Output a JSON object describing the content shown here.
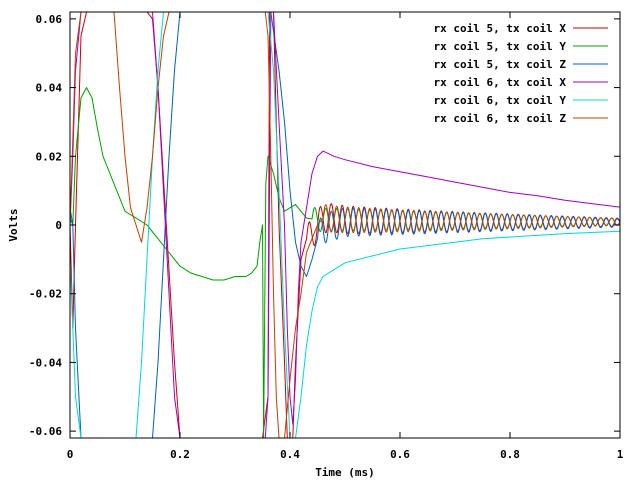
{
  "chart_data": {
    "type": "line",
    "title": "",
    "xlabel": "Time (ms)",
    "ylabel": "Volts",
    "xlim": [
      0,
      1
    ],
    "ylim": [
      -0.062,
      0.062
    ],
    "x_ticks": [
      0,
      0.2,
      0.4,
      0.6,
      0.8,
      1
    ],
    "x_tick_labels": [
      "0",
      "0.2",
      "0.4",
      "0.6",
      "0.8",
      "1"
    ],
    "y_ticks": [
      -0.06,
      -0.04,
      -0.02,
      0,
      0.02,
      0.04,
      0.06
    ],
    "y_tick_labels": [
      "-0.06",
      "-0.04",
      "-0.02",
      "0",
      "0.02",
      "0.04",
      "0.06"
    ],
    "grid": false,
    "legend_position": "top-right",
    "series": [
      {
        "name": "rx coil 5, tx coil X",
        "color": "#cc0000",
        "points": [
          [
            0,
            0.0
          ],
          [
            0.005,
            -0.03
          ],
          [
            0.01,
            0.0
          ],
          [
            0.02,
            0.055
          ],
          [
            0.03,
            0.062
          ],
          [
            0.06,
            0.062
          ],
          [
            0.1,
            0.062
          ],
          [
            0.14,
            0.062
          ],
          [
            0.15,
            0.06
          ],
          [
            0.16,
            0.04
          ],
          [
            0.175,
            0.0
          ],
          [
            0.19,
            -0.04
          ],
          [
            0.2,
            -0.062
          ],
          [
            0.22,
            -0.062
          ],
          [
            0.3,
            -0.062
          ],
          [
            0.35,
            -0.062
          ],
          [
            0.36,
            -0.05
          ],
          [
            0.363,
            0.062
          ],
          [
            0.37,
            0.062
          ],
          [
            0.375,
            0.03
          ],
          [
            0.38,
            0.0
          ],
          [
            0.39,
            -0.04
          ],
          [
            0.395,
            -0.062
          ],
          [
            0.405,
            -0.062
          ],
          [
            0.41,
            -0.04
          ],
          [
            0.42,
            -0.01
          ],
          [
            0.43,
            -0.004
          ],
          [
            0.44,
            -0.003
          ],
          [
            0.45,
            0.0
          ],
          [
            0.46,
            0.002
          ],
          [
            0.48,
            0.002
          ],
          [
            0.5,
            0.0015
          ],
          [
            0.6,
            0.0012
          ],
          [
            0.7,
            0.001
          ],
          [
            0.8,
            0.0009
          ],
          [
            1.0,
            0.0008
          ]
        ],
        "oscillation": {
          "start": 0.43,
          "end": 1.0,
          "period": 0.02,
          "amplitude_start": 0.0045,
          "amplitude_end": 0.0012
        }
      },
      {
        "name": "rx coil 5, tx coil Y",
        "color": "#00a000",
        "points": [
          [
            0,
            0.002
          ],
          [
            0.005,
            0.0
          ],
          [
            0.01,
            0.02
          ],
          [
            0.02,
            0.037
          ],
          [
            0.03,
            0.04
          ],
          [
            0.04,
            0.037
          ],
          [
            0.05,
            0.028
          ],
          [
            0.06,
            0.02
          ],
          [
            0.07,
            0.016
          ],
          [
            0.08,
            0.012
          ],
          [
            0.09,
            0.008
          ],
          [
            0.1,
            0.004
          ],
          [
            0.12,
            0.002
          ],
          [
            0.14,
            0.0
          ],
          [
            0.16,
            -0.004
          ],
          [
            0.18,
            -0.008
          ],
          [
            0.2,
            -0.012
          ],
          [
            0.22,
            -0.014
          ],
          [
            0.24,
            -0.015
          ],
          [
            0.26,
            -0.016
          ],
          [
            0.28,
            -0.016
          ],
          [
            0.3,
            -0.015
          ],
          [
            0.32,
            -0.015
          ],
          [
            0.33,
            -0.014
          ],
          [
            0.34,
            -0.012
          ],
          [
            0.345,
            -0.005
          ],
          [
            0.35,
            0.0
          ],
          [
            0.352,
            -0.062
          ],
          [
            0.356,
            0.012
          ],
          [
            0.36,
            0.02
          ],
          [
            0.37,
            0.015
          ],
          [
            0.38,
            0.008
          ],
          [
            0.39,
            0.004
          ],
          [
            0.4,
            0.005
          ],
          [
            0.41,
            0.006
          ],
          [
            0.42,
            0.004
          ],
          [
            0.43,
            0.002
          ],
          [
            0.45,
            0.0015
          ],
          [
            0.5,
            0.0015
          ],
          [
            0.6,
            0.0013
          ],
          [
            0.8,
            0.0011
          ],
          [
            1.0,
            0.001
          ]
        ],
        "oscillation": {
          "start": 0.44,
          "end": 1.0,
          "period": 0.02,
          "amplitude_start": 0.0035,
          "amplitude_end": 0.001
        }
      },
      {
        "name": "rx coil 5, tx coil Z",
        "color": "#0060c0",
        "points": [
          [
            0,
            0.005
          ],
          [
            0.005,
            0.0
          ],
          [
            0.01,
            -0.03
          ],
          [
            0.02,
            -0.062
          ],
          [
            0.05,
            -0.062
          ],
          [
            0.15,
            -0.062
          ],
          [
            0.16,
            -0.04
          ],
          [
            0.17,
            -0.01
          ],
          [
            0.18,
            0.02
          ],
          [
            0.19,
            0.045
          ],
          [
            0.2,
            0.062
          ],
          [
            0.22,
            0.062
          ],
          [
            0.35,
            0.062
          ],
          [
            0.36,
            0.062
          ],
          [
            0.365,
            0.062
          ],
          [
            0.38,
            0.045
          ],
          [
            0.39,
            0.03
          ],
          [
            0.4,
            0.01
          ],
          [
            0.41,
            -0.005
          ],
          [
            0.42,
            -0.012
          ],
          [
            0.43,
            -0.015
          ],
          [
            0.44,
            -0.01
          ],
          [
            0.45,
            -0.004
          ],
          [
            0.46,
            -0.001
          ],
          [
            0.5,
            0.0008
          ],
          [
            0.6,
            0.0008
          ],
          [
            0.8,
            0.0007
          ],
          [
            1.0,
            0.0006
          ]
        ],
        "oscillation": {
          "start": 0.45,
          "end": 1.0,
          "period": 0.02,
          "amplitude_start": 0.0045,
          "amplitude_end": 0.0012
        }
      },
      {
        "name": "rx coil 6, tx coil X",
        "color": "#a000c8",
        "points": [
          [
            0,
            0.0
          ],
          [
            0.005,
            0.02
          ],
          [
            0.01,
            0.045
          ],
          [
            0.02,
            0.062
          ],
          [
            0.05,
            0.062
          ],
          [
            0.1,
            0.062
          ],
          [
            0.15,
            0.062
          ],
          [
            0.16,
            0.04
          ],
          [
            0.17,
            0.01
          ],
          [
            0.18,
            -0.02
          ],
          [
            0.19,
            -0.05
          ],
          [
            0.2,
            -0.062
          ],
          [
            0.3,
            -0.062
          ],
          [
            0.355,
            -0.062
          ],
          [
            0.36,
            -0.05
          ],
          [
            0.365,
            0.062
          ],
          [
            0.37,
            0.062
          ],
          [
            0.38,
            0.03
          ],
          [
            0.39,
            0.0
          ],
          [
            0.395,
            -0.03
          ],
          [
            0.4,
            -0.05
          ],
          [
            0.405,
            -0.058
          ],
          [
            0.41,
            -0.045
          ],
          [
            0.415,
            -0.02
          ],
          [
            0.42,
            -0.005
          ],
          [
            0.43,
            0.005
          ],
          [
            0.44,
            0.015
          ],
          [
            0.45,
            0.02
          ],
          [
            0.46,
            0.0215
          ],
          [
            0.48,
            0.02
          ],
          [
            0.5,
            0.019
          ],
          [
            0.55,
            0.017
          ],
          [
            0.6,
            0.0155
          ],
          [
            0.65,
            0.014
          ],
          [
            0.7,
            0.0125
          ],
          [
            0.75,
            0.011
          ],
          [
            0.8,
            0.0095
          ],
          [
            0.85,
            0.0085
          ],
          [
            0.9,
            0.0072
          ],
          [
            0.95,
            0.0062
          ],
          [
            1.0,
            0.0052
          ]
        ]
      },
      {
        "name": "rx coil 6, tx coil Y",
        "color": "#00d8d8",
        "points": [
          [
            0,
            -0.01
          ],
          [
            0.005,
            -0.03
          ],
          [
            0.01,
            -0.05
          ],
          [
            0.02,
            -0.062
          ],
          [
            0.05,
            -0.062
          ],
          [
            0.1,
            -0.062
          ],
          [
            0.12,
            -0.062
          ],
          [
            0.13,
            -0.04
          ],
          [
            0.14,
            -0.01
          ],
          [
            0.15,
            0.02
          ],
          [
            0.16,
            0.045
          ],
          [
            0.17,
            0.062
          ],
          [
            0.2,
            0.062
          ],
          [
            0.35,
            0.062
          ],
          [
            0.36,
            0.062
          ],
          [
            0.37,
            0.045
          ],
          [
            0.38,
            0.01
          ],
          [
            0.39,
            -0.03
          ],
          [
            0.4,
            -0.062
          ],
          [
            0.41,
            -0.062
          ],
          [
            0.42,
            -0.05
          ],
          [
            0.43,
            -0.035
          ],
          [
            0.44,
            -0.025
          ],
          [
            0.45,
            -0.018
          ],
          [
            0.46,
            -0.015
          ],
          [
            0.48,
            -0.013
          ],
          [
            0.5,
            -0.011
          ],
          [
            0.55,
            -0.009
          ],
          [
            0.6,
            -0.007
          ],
          [
            0.65,
            -0.006
          ],
          [
            0.7,
            -0.005
          ],
          [
            0.75,
            -0.004
          ],
          [
            0.8,
            -0.0035
          ],
          [
            0.9,
            -0.0025
          ],
          [
            1.0,
            -0.0018
          ]
        ]
      },
      {
        "name": "rx coil 6, tx coil Z",
        "color": "#c04000",
        "points": [
          [
            0,
            0.0
          ],
          [
            0.005,
            0.025
          ],
          [
            0.01,
            0.05
          ],
          [
            0.02,
            0.062
          ],
          [
            0.05,
            0.062
          ],
          [
            0.08,
            0.062
          ],
          [
            0.09,
            0.04
          ],
          [
            0.1,
            0.02
          ],
          [
            0.11,
            0.005
          ],
          [
            0.12,
            0.0
          ],
          [
            0.13,
            -0.005
          ],
          [
            0.14,
            0.005
          ],
          [
            0.15,
            0.02
          ],
          [
            0.16,
            0.04
          ],
          [
            0.17,
            0.055
          ],
          [
            0.18,
            0.062
          ],
          [
            0.19,
            0.062
          ],
          [
            0.2,
            0.062
          ],
          [
            0.21,
            0.062
          ],
          [
            0.22,
            0.062
          ],
          [
            0.25,
            0.062
          ],
          [
            0.3,
            0.062
          ],
          [
            0.35,
            0.062
          ],
          [
            0.355,
            0.062
          ],
          [
            0.36,
            0.055
          ],
          [
            0.365,
            0.02
          ],
          [
            0.37,
            -0.02
          ],
          [
            0.375,
            -0.05
          ],
          [
            0.38,
            -0.062
          ],
          [
            0.39,
            -0.062
          ],
          [
            0.4,
            -0.045
          ],
          [
            0.41,
            -0.03
          ],
          [
            0.42,
            -0.02
          ],
          [
            0.43,
            -0.008
          ],
          [
            0.44,
            -0.004
          ],
          [
            0.45,
            0.0
          ],
          [
            0.46,
            0.002
          ],
          [
            0.5,
            0.0015
          ],
          [
            0.6,
            0.0012
          ],
          [
            0.8,
            0.001
          ],
          [
            1.0,
            0.0009
          ]
        ],
        "oscillation": {
          "start": 0.46,
          "end": 1.0,
          "period": 0.02,
          "amplitude_start": 0.004,
          "amplitude_end": 0.001
        }
      }
    ]
  }
}
